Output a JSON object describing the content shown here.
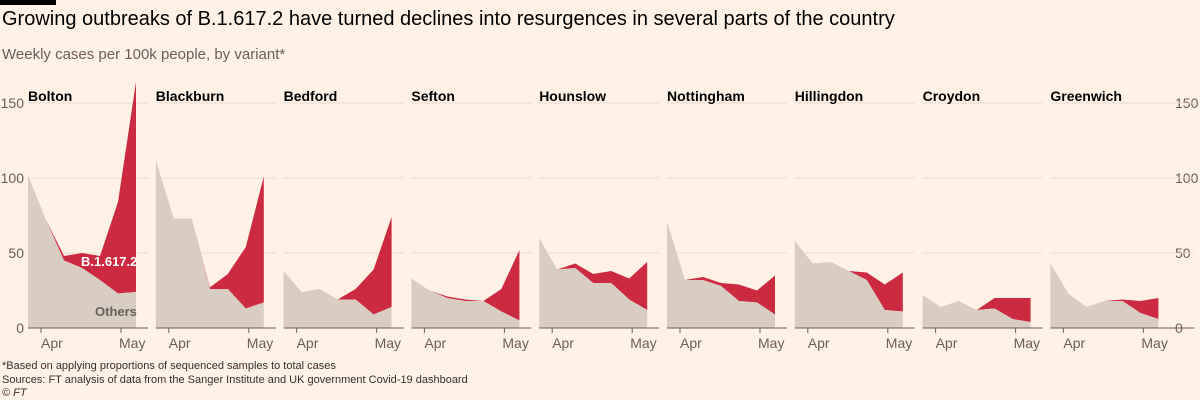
{
  "title": "Growing outbreaks of B.1.617.2 have turned declines into resurgences in several parts of the country",
  "subtitle": "Weekly cases per 100k people, by variant*",
  "footnotes": [
    "*Based on applying proportions of sequenced samples to total cases",
    "Sources: FT analysis of data from the Sanger Institute and UK government Covid-19 dashboard",
    "© FT"
  ],
  "colors": {
    "others": "#d9cdc2",
    "variant": "#cc2a40",
    "background": "#fff1e5"
  },
  "chart_data": {
    "type": "area",
    "stacked": true,
    "ylim": [
      0,
      150
    ],
    "yticks": [
      "0",
      "50",
      "100",
      "150"
    ],
    "xticks": [
      "Apr",
      "May"
    ],
    "ylabel": "Weekly cases per 100k people",
    "labels": {
      "variant": "B.1.617.2",
      "others": "Others"
    },
    "panels": [
      {
        "name": "Bolton",
        "total": [
          102,
          72,
          48,
          50,
          48,
          84,
          164
        ],
        "others": [
          102,
          72,
          45,
          40,
          32,
          23,
          24
        ]
      },
      {
        "name": "Blackburn",
        "total": [
          112,
          73,
          73,
          27,
          36,
          54,
          101
        ],
        "others": [
          112,
          73,
          73,
          26,
          26,
          13,
          17
        ]
      },
      {
        "name": "Bedford",
        "total": [
          38,
          24,
          26,
          19,
          26,
          39,
          74
        ],
        "others": [
          38,
          24,
          26,
          19,
          19,
          9,
          14
        ]
      },
      {
        "name": "Sefton",
        "total": [
          33,
          25,
          21,
          19,
          18,
          26,
          52
        ],
        "others": [
          33,
          25,
          20,
          18,
          18,
          11,
          5
        ]
      },
      {
        "name": "Hounslow",
        "total": [
          60,
          39,
          43,
          36,
          38,
          33,
          44
        ],
        "others": [
          60,
          39,
          40,
          30,
          30,
          19,
          12
        ]
      },
      {
        "name": "Nottingham",
        "total": [
          71,
          32,
          34,
          30,
          29,
          25,
          35
        ],
        "others": [
          71,
          32,
          32,
          28,
          18,
          17,
          9
        ]
      },
      {
        "name": "Hillingdon",
        "total": [
          58,
          43,
          44,
          38,
          37,
          29,
          37
        ],
        "others": [
          58,
          43,
          44,
          38,
          32,
          12,
          11
        ]
      },
      {
        "name": "Croydon",
        "total": [
          22,
          14,
          18,
          12,
          20,
          20,
          20
        ],
        "others": [
          22,
          14,
          18,
          12,
          13,
          6,
          4
        ]
      },
      {
        "name": "Greenwich",
        "total": [
          43,
          23,
          14,
          18,
          19,
          18,
          20
        ],
        "others": [
          43,
          23,
          14,
          18,
          18,
          10,
          6
        ]
      }
    ]
  }
}
